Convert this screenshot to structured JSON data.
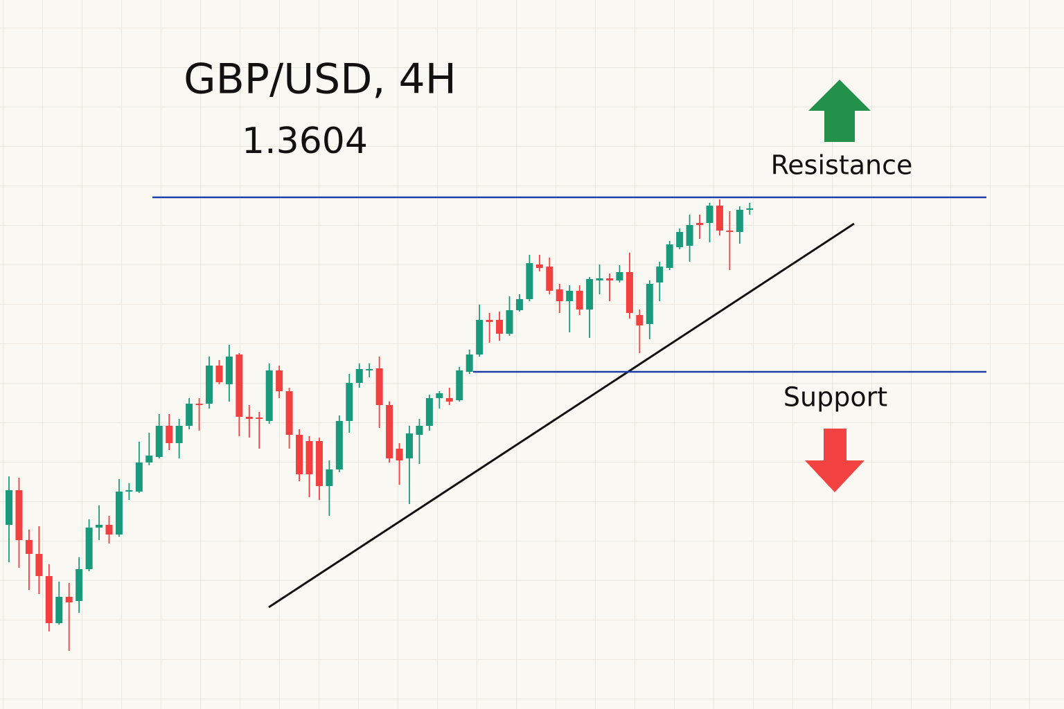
{
  "chart_data": {
    "type": "candlestick",
    "title": "GBP/USD, 4H",
    "last_price": 1.3604,
    "categories": [
      null,
      null,
      null,
      null,
      null,
      null,
      null,
      null,
      null,
      null,
      null,
      null,
      null,
      null,
      null,
      null,
      null,
      null,
      null,
      null,
      null,
      null,
      null,
      null,
      null,
      null,
      null,
      null,
      null,
      null,
      null,
      null,
      null,
      null,
      null,
      null,
      null,
      null,
      null,
      null,
      null,
      null,
      null,
      null,
      null,
      null,
      null,
      null,
      null,
      null,
      null,
      null,
      null,
      null,
      null,
      null,
      null,
      null,
      null,
      null,
      null,
      null,
      null,
      null,
      null,
      null,
      null,
      null,
      null,
      null,
      null,
      null,
      null,
      null,
      null
    ],
    "open": [
      1.35582,
      1.35632,
      1.3556,
      1.3554,
      1.35508,
      1.3544,
      1.35478,
      1.35472,
      1.35518,
      1.35578,
      1.35582,
      1.35568,
      1.3563,
      1.3563,
      1.35672,
      1.3568,
      1.35725,
      1.357,
      1.35725,
      1.35757,
      1.35757,
      1.35812,
      1.35785,
      1.35828,
      1.35738,
      1.35737,
      1.35732,
      1.35805,
      1.35775,
      1.35712,
      1.35703,
      1.35703,
      1.35638,
      1.35662,
      1.35732,
      1.35787,
      1.35805,
      1.35808,
      1.35755,
      1.35692,
      1.35678,
      1.35712,
      1.35725,
      1.35765,
      1.35765,
      1.35762,
      1.35803,
      1.35828,
      1.35878,
      1.35878,
      1.35858,
      1.35892,
      1.35908,
      1.35958,
      1.35955,
      1.35922,
      1.35905,
      1.3592,
      1.35893,
      1.35935,
      1.35938,
      1.35935,
      1.35947,
      1.35885,
      1.35872,
      1.35932,
      1.35953,
      1.35983,
      1.35985,
      1.36018,
      1.36018,
      1.36043,
      1.36007,
      1.36005,
      1.36037
    ],
    "high": [
      1.35652,
      1.3565,
      1.35575,
      1.3558,
      1.35525,
      1.355,
      1.35498,
      1.35535,
      1.3559,
      1.3561,
      1.35595,
      1.35648,
      1.35642,
      1.35702,
      1.35715,
      1.35742,
      1.35742,
      1.35735,
      1.35765,
      1.35765,
      1.35825,
      1.3582,
      1.35842,
      1.3583,
      1.35755,
      1.35745,
      1.35815,
      1.35812,
      1.3578,
      1.3572,
      1.3571,
      1.35708,
      1.35675,
      1.3574,
      1.358,
      1.35815,
      1.35815,
      1.35825,
      1.3576,
      1.357,
      1.35725,
      1.35735,
      1.3577,
      1.35775,
      1.3578,
      1.3581,
      1.35835,
      1.359,
      1.35888,
      1.3589,
      1.35912,
      1.35915,
      1.35972,
      1.35972,
      1.35968,
      1.3593,
      1.35928,
      1.35928,
      1.3594,
      1.35958,
      1.35945,
      1.35957,
      1.35975,
      1.35893,
      1.35935,
      1.35962,
      1.35992,
      1.3601,
      1.3603,
      1.3603,
      1.36047,
      1.36052,
      1.36035,
      1.36042,
      1.36047
    ],
    "low": [
      1.35528,
      1.3552,
      1.35488,
      1.35482,
      1.35428,
      1.35438,
      1.354,
      1.35455,
      1.35515,
      1.3556,
      1.35555,
      1.35565,
      1.35618,
      1.35628,
      1.35668,
      1.35678,
      1.3569,
      1.35678,
      1.3572,
      1.35718,
      1.3575,
      1.35785,
      1.3576,
      1.3571,
      1.35708,
      1.35692,
      1.35728,
      1.35765,
      1.35692,
      1.35645,
      1.35622,
      1.35618,
      1.35595,
      1.35658,
      1.35715,
      1.3578,
      1.35795,
      1.35722,
      1.35672,
      1.3564,
      1.35612,
      1.3567,
      1.35718,
      1.3575,
      1.35755,
      1.3576,
      1.358,
      1.35825,
      1.35845,
      1.35848,
      1.35855,
      1.3589,
      1.35905,
      1.35948,
      1.35915,
      1.35888,
      1.3586,
      1.35885,
      1.35852,
      1.35915,
      1.35905,
      1.35932,
      1.3588,
      1.3583,
      1.3585,
      1.35905,
      1.3595,
      1.3598,
      1.35962,
      1.35995,
      1.3599,
      1.36,
      1.3595,
      1.35988,
      1.3603
    ],
    "close": [
      1.35632,
      1.3556,
      1.3554,
      1.35508,
      1.3544,
      1.35478,
      1.3547,
      1.35518,
      1.35578,
      1.35582,
      1.35568,
      1.3563,
      1.35632,
      1.35672,
      1.35682,
      1.35725,
      1.357,
      1.35725,
      1.35757,
      1.35755,
      1.35812,
      1.35788,
      1.35825,
      1.35738,
      1.35735,
      1.35736,
      1.35805,
      1.35775,
      1.35712,
      1.35655,
      1.35655,
      1.35638,
      1.35662,
      1.35732,
      1.35787,
      1.35807,
      1.35807,
      1.35755,
      1.35678,
      1.35675,
      1.35714,
      1.35725,
      1.35765,
      1.35772,
      1.3576,
      1.35805,
      1.35828,
      1.35878,
      1.35875,
      1.35858,
      1.35892,
      1.35908,
      1.3596,
      1.35953,
      1.3592,
      1.35905,
      1.3592,
      1.35893,
      1.35937,
      1.35938,
      1.35935,
      1.35947,
      1.35888,
      1.3587,
      1.3593,
      1.35955,
      1.35987,
      1.36005,
      1.36015,
      1.36015,
      1.36043,
      1.36007,
      1.36005,
      1.36037,
      1.36039
    ],
    "up_color": "#1a9a7d",
    "down_color": "#f23f3f",
    "levels": [
      {
        "name": "Resistance",
        "value": 1.36055,
        "color": "#1f3fa8"
      },
      {
        "name": "Support",
        "value": 1.35803,
        "color": "#1f3fa8"
      }
    ],
    "ylim": [
      1.35316,
      1.3634
    ]
  }
}
